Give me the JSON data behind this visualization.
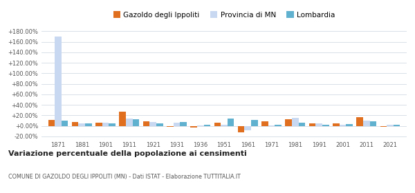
{
  "years": [
    1871,
    1881,
    1901,
    1911,
    1921,
    1931,
    1936,
    1951,
    1961,
    1971,
    1981,
    1991,
    2001,
    2011,
    2021
  ],
  "gazoldo": [
    11.0,
    7.0,
    6.0,
    27.0,
    9.0,
    -2.0,
    -3.0,
    6.0,
    -13.0,
    8.0,
    13.0,
    5.0,
    4.0,
    17.0,
    -2.0
  ],
  "provincia": [
    170.0,
    5.0,
    6.0,
    14.0,
    7.0,
    6.0,
    0.5,
    2.5,
    -9.0,
    1.0,
    15.0,
    5.0,
    2.0,
    10.0,
    2.0
  ],
  "lombardia": [
    10.0,
    4.0,
    4.0,
    13.0,
    5.0,
    7.0,
    2.0,
    14.0,
    11.0,
    1.5,
    6.0,
    1.5,
    3.0,
    8.0,
    2.0
  ],
  "color_gazoldo": "#e07020",
  "color_provincia": "#c8d8f0",
  "color_lombardia": "#60b0d0",
  "title": "Variazione percentuale della popolazione ai censimenti",
  "subtitle": "COMUNE DI GAZOLDO DEGLI IPPOLITI (MN) - Dati ISTAT - Elaborazione TUTTITALIA.IT",
  "ylabel_ticks": [
    -20,
    0,
    20,
    40,
    60,
    80,
    100,
    120,
    140,
    160,
    180
  ],
  "ylim": [
    -25,
    188
  ],
  "bar_width": 0.28,
  "legend_labels": [
    "Gazoldo degli Ippoliti",
    "Provincia di MN",
    "Lombardia"
  ],
  "bg_color": "#ffffff",
  "grid_color": "#d8e0e8"
}
